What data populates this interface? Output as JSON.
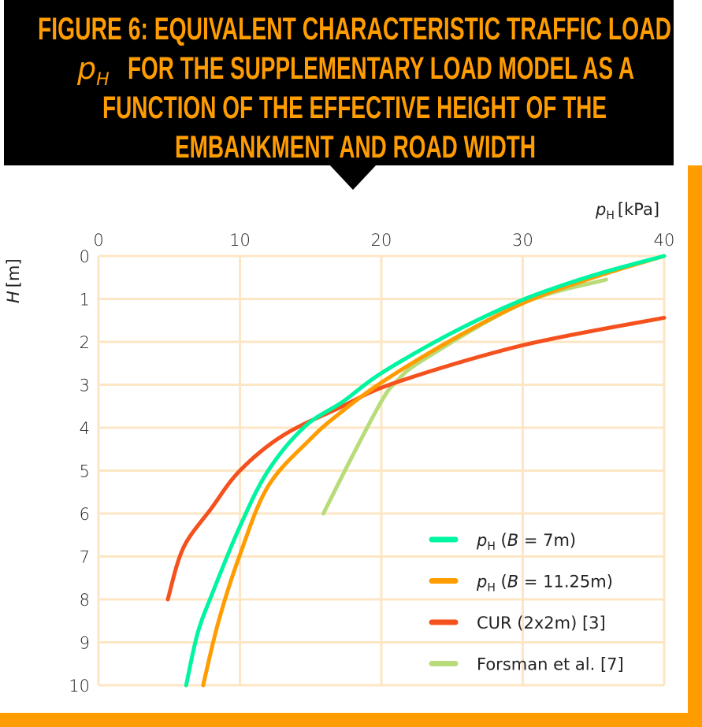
{
  "title": {
    "line1": "FIGURE 6: EQUIVALENT CHARACTERISTIC TRAFFIC LOAD",
    "symbol": "p",
    "symbol_sub": "H",
    "line2": "FOR THE SUPPLEMENTARY LOAD MODEL AS A",
    "line3": "FUNCTION OF THE EFFECTIVE HEIGHT OF THE",
    "line4": "EMBANKMENT AND ROAD WIDTH"
  },
  "colors": {
    "title_bg": "#000000",
    "title_text": "#ff9c00",
    "frame": "#ff9c00",
    "grid": "#fde6c4"
  },
  "chart_data": {
    "type": "line",
    "xaxis": {
      "label": "p",
      "label_sub": "H",
      "label_unit": "[kPa]",
      "range": [
        0,
        40
      ],
      "ticks": [
        "0",
        "10",
        "20",
        "30",
        "40"
      ],
      "position": "top"
    },
    "yaxis": {
      "label": "H",
      "label_unit": "[m]",
      "range": [
        0,
        10
      ],
      "inverted": true,
      "ticks": [
        "0",
        "1",
        "2",
        "3",
        "4",
        "5",
        "6",
        "7",
        "8",
        "9",
        "10"
      ]
    },
    "grid": true,
    "legend_placement": "bottom-right",
    "series": [
      {
        "name": "p",
        "name_sub": "H",
        "name_rest": " (",
        "name_italic": "B",
        "name_end": " = 7m)",
        "color": "#00f5a0",
        "points": [
          [
            40,
            0
          ],
          [
            35,
            0.45
          ],
          [
            30,
            1.02
          ],
          [
            25,
            1.79
          ],
          [
            20,
            2.73
          ],
          [
            17.3,
            3.39
          ],
          [
            14.6,
            3.97
          ],
          [
            12,
            5.0
          ],
          [
            10,
            6.3
          ],
          [
            8,
            7.9
          ],
          [
            7,
            8.8
          ],
          [
            6.2,
            10
          ]
        ]
      },
      {
        "name": "p",
        "name_sub": "H",
        "name_rest": " (",
        "name_italic": "B",
        "name_end": " = 11.25m)",
        "color": "#ff9c00",
        "points": [
          [
            40,
            0
          ],
          [
            35,
            0.5
          ],
          [
            30,
            1.1
          ],
          [
            25,
            1.95
          ],
          [
            20,
            2.95
          ],
          [
            17,
            3.68
          ],
          [
            15,
            4.26
          ],
          [
            12,
            5.36
          ],
          [
            10,
            6.96
          ],
          [
            8.5,
            8.5
          ],
          [
            7.4,
            10
          ]
        ]
      },
      {
        "name": "CUR (2x2m) [3]",
        "color": "#f4511e",
        "points": [
          [
            40,
            1.44
          ],
          [
            30,
            2.08
          ],
          [
            21,
            2.95
          ],
          [
            17,
            3.54
          ],
          [
            13,
            4.19
          ],
          [
            10,
            5.0
          ],
          [
            8,
            5.87
          ],
          [
            6,
            6.8
          ],
          [
            4.9,
            8
          ]
        ]
      },
      {
        "name": "Forsman et al. [7]",
        "color": "#b9dc7a",
        "points": [
          [
            35.9,
            0.55
          ],
          [
            30,
            1.1
          ],
          [
            23,
            2.41
          ],
          [
            21,
            2.95
          ],
          [
            20,
            3.39
          ],
          [
            18,
            4.63
          ],
          [
            15.9,
            6.0
          ]
        ]
      }
    ]
  }
}
